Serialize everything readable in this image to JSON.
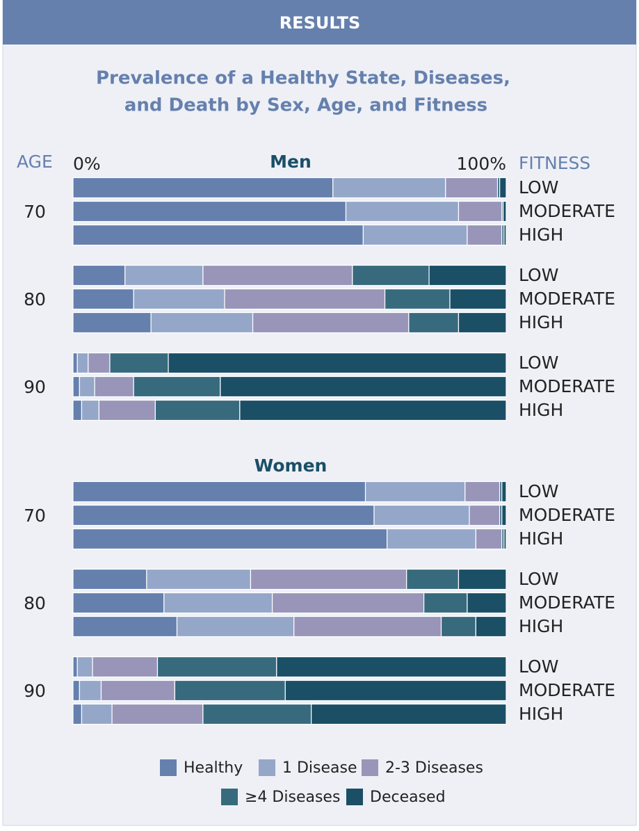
{
  "chart_data": {
    "type": "stacked-bar-horizontal",
    "header": "RESULTS",
    "title": [
      "Prevalence of a Healthy State, Diseases,",
      "and Death by Sex, Age, and Fitness"
    ],
    "age_label": "AGE",
    "fitness_label": "FITNESS",
    "panels": [
      "Men",
      "Women"
    ],
    "ages": [
      "70",
      "80",
      "90",
      "70",
      "80",
      "90"
    ],
    "categories": [
      "LOW",
      "MODERATE",
      "HIGH",
      "LOW",
      "MODERATE",
      "HIGH",
      "LOW",
      "MODERATE",
      "HIGH",
      "LOW",
      "MODERATE",
      "HIGH",
      "LOW",
      "MODERATE",
      "HIGH",
      "LOW",
      "MODERATE",
      "HIGH"
    ],
    "xlim": [
      0,
      100
    ],
    "xticks": [
      {
        "value": 0,
        "label": "0%"
      },
      {
        "value": 100,
        "label": "100%"
      }
    ],
    "series": [
      {
        "name": "Healthy",
        "color": "#6580ad",
        "values": [
          60,
          63,
          67,
          12,
          14,
          18,
          1,
          1.5,
          2,
          67.5,
          69.5,
          72.5,
          17,
          21,
          24,
          1,
          1.5,
          2
        ]
      },
      {
        "name": "1 Disease",
        "color": "#95a7c8",
        "values": [
          26,
          26,
          24,
          18,
          21,
          23.5,
          2.5,
          3.5,
          4,
          23,
          22,
          20.5,
          24,
          25,
          27,
          3.5,
          5,
          7
        ]
      },
      {
        "name": "2-3 Diseases",
        "color": "#9895b9",
        "values": [
          12,
          10,
          8,
          34.5,
          37,
          36,
          5,
          9,
          13,
          8,
          7,
          6,
          36,
          35,
          34,
          15,
          17,
          21
        ]
      },
      {
        "name": "≥4 Diseases",
        "color": "#386a7e",
        "values": [
          0.5,
          0.3,
          0.5,
          17.7,
          15,
          11.5,
          13.5,
          20,
          19.5,
          0.5,
          0.5,
          0.5,
          12,
          10,
          8,
          27.5,
          25.5,
          25
        ]
      },
      {
        "name": "Deceased",
        "color": "#1a4f66",
        "values": [
          1.5,
          0.7,
          0.5,
          17.8,
          13,
          11,
          78,
          66,
          61.5,
          1,
          1,
          0.5,
          11,
          9,
          7,
          53,
          51,
          45
        ]
      }
    ]
  }
}
